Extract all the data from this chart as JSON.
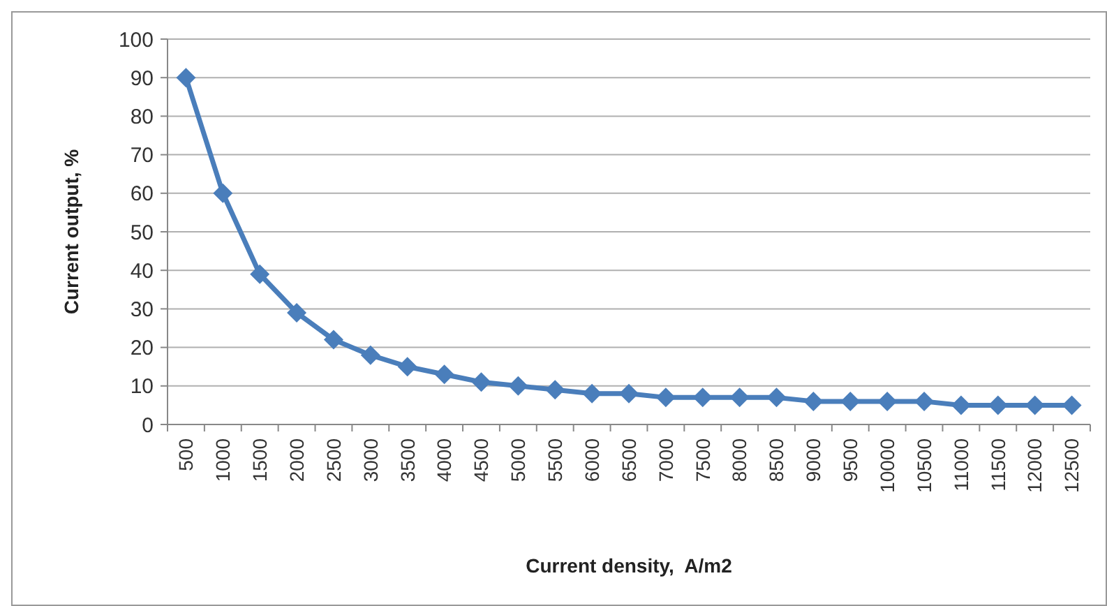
{
  "chart_data": {
    "type": "line",
    "xlabel": "Current density,  A/m2",
    "ylabel": "Current output, %",
    "categories": [
      "500",
      "1000",
      "1500",
      "2000",
      "2500",
      "3000",
      "3500",
      "4000",
      "4500",
      "5000",
      "5500",
      "6000",
      "6500",
      "7000",
      "7500",
      "8000",
      "8500",
      "9000",
      "9500",
      "10000",
      "10500",
      "11000",
      "11500",
      "12000",
      "12500"
    ],
    "series": [
      {
        "color": "#4a7ebb",
        "values": [
          90,
          60,
          39,
          29,
          22,
          18,
          15,
          13,
          11,
          10,
          9,
          8,
          8,
          7,
          7,
          7,
          7,
          6,
          6,
          6,
          6,
          5,
          5,
          5,
          5
        ]
      }
    ],
    "ylim": [
      0,
      100
    ],
    "yticks": [
      0,
      10,
      20,
      30,
      40,
      50,
      60,
      70,
      80,
      90,
      100
    ],
    "grid": "y",
    "marker": "diamond",
    "line_style": "solid"
  }
}
